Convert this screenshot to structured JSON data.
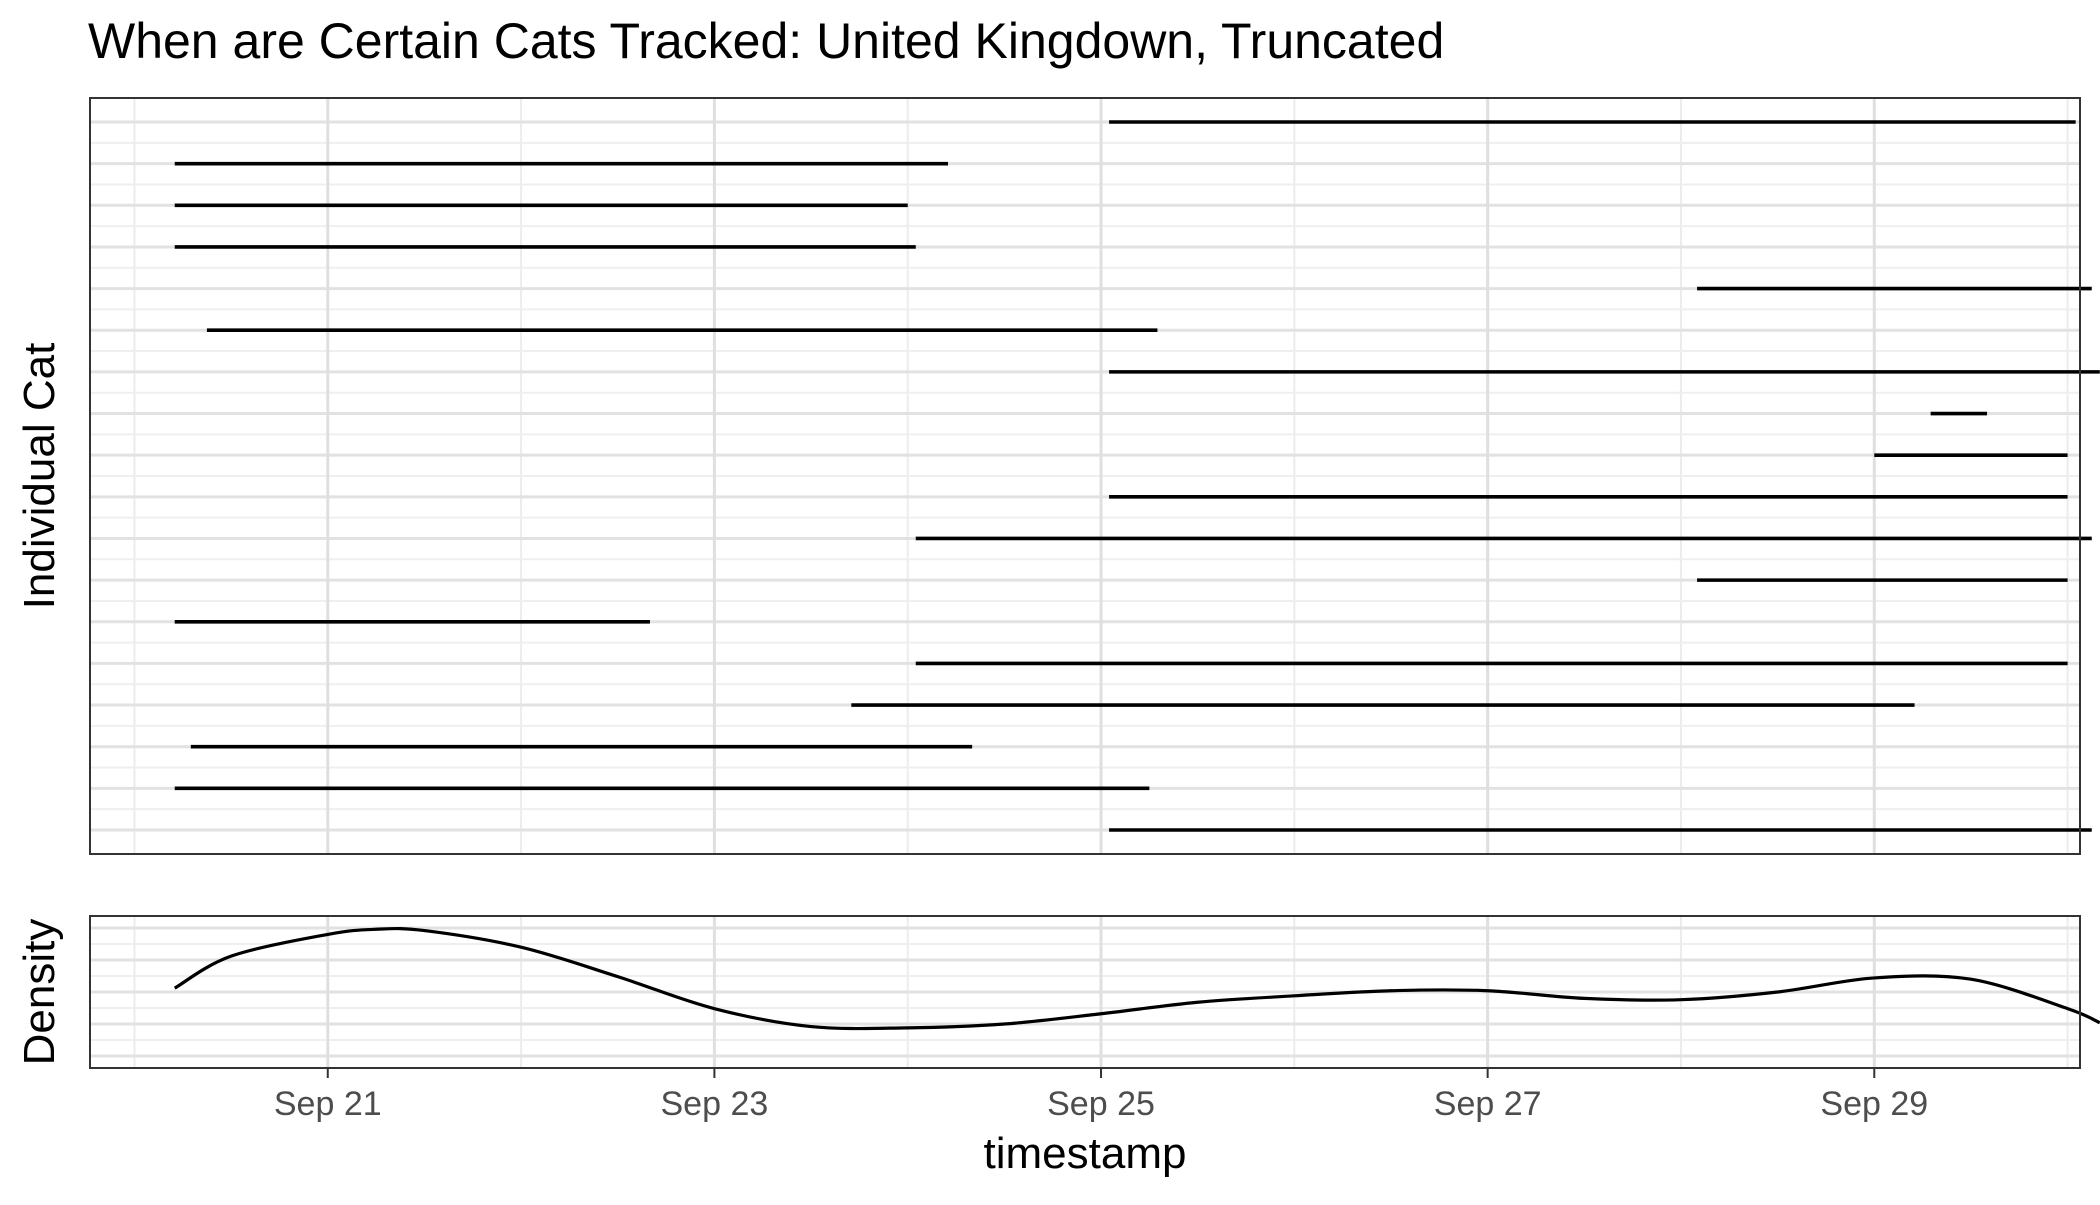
{
  "chart_data": [
    {
      "type": "line",
      "title": "When are Certain Cats Tracked: United Kingdown, Truncated",
      "xlabel": "",
      "ylabel": "Individual Cat",
      "x_axis_type": "date",
      "xlim": [
        "2020-09-19",
        "2020-09-30"
      ],
      "grid": true,
      "legend": "none",
      "segments": [
        {
          "start": "2020-09-25 01:00",
          "end": "2020-09-30 01:00"
        },
        {
          "start": "2020-09-20 05:00",
          "end": "2020-09-24 05:00"
        },
        {
          "start": "2020-09-20 05:00",
          "end": "2020-09-24 00:00"
        },
        {
          "start": "2020-09-20 05:00",
          "end": "2020-09-24 01:00"
        },
        {
          "start": "2020-09-28 02:00",
          "end": "2020-09-30 03:00"
        },
        {
          "start": "2020-09-20 09:00",
          "end": "2020-09-25 07:00"
        },
        {
          "start": "2020-09-25 01:00",
          "end": "2020-09-30 04:00"
        },
        {
          "start": "2020-09-29 07:00",
          "end": "2020-09-29 14:00"
        },
        {
          "start": "2020-09-29 00:00",
          "end": "2020-09-30 00:00"
        },
        {
          "start": "2020-09-25 01:00",
          "end": "2020-09-30 00:00"
        },
        {
          "start": "2020-09-24 01:00",
          "end": "2020-09-30 03:00"
        },
        {
          "start": "2020-09-28 02:00",
          "end": "2020-09-30 00:00"
        },
        {
          "start": "2020-09-20 05:00",
          "end": "2020-09-22 16:00"
        },
        {
          "start": "2020-09-24 01:00",
          "end": "2020-09-30 00:00"
        },
        {
          "start": "2020-09-23 17:00",
          "end": "2020-09-29 05:00"
        },
        {
          "start": "2020-09-20 07:00",
          "end": "2020-09-24 08:00"
        },
        {
          "start": "2020-09-20 05:00",
          "end": "2020-09-25 06:00"
        },
        {
          "start": "2020-09-25 01:00",
          "end": "2020-09-30 03:00"
        }
      ]
    },
    {
      "type": "area",
      "title": "",
      "xlabel": "timestamp",
      "ylabel": "Density",
      "x_axis_type": "date",
      "xlim": [
        "2020-09-19",
        "2020-09-30"
      ],
      "x_ticks": [
        "Sep 21",
        "Sep 23",
        "Sep 25",
        "Sep 27",
        "Sep 29"
      ],
      "x_tick_dates": [
        "2020-09-21",
        "2020-09-23",
        "2020-09-25",
        "2020-09-27",
        "2020-09-29"
      ],
      "grid": true,
      "legend": "none",
      "density_curve": {
        "x": [
          "2020-09-20 05:00",
          "2020-09-20 12:00",
          "2020-09-21 00:00",
          "2020-09-21 06:00",
          "2020-09-21 12:00",
          "2020-09-22 00:00",
          "2020-09-22 12:00",
          "2020-09-23 00:00",
          "2020-09-23 12:00",
          "2020-09-24 00:00",
          "2020-09-24 12:00",
          "2020-09-25 00:00",
          "2020-09-25 12:00",
          "2020-09-26 00:00",
          "2020-09-26 12:00",
          "2020-09-27 00:00",
          "2020-09-27 12:00",
          "2020-09-28 00:00",
          "2020-09-28 12:00",
          "2020-09-29 00:00",
          "2020-09-29 12:00",
          "2020-09-30 00:00",
          "2020-09-30 04:00"
        ],
        "y": [
          0.53,
          0.78,
          0.95,
          0.99,
          0.98,
          0.85,
          0.62,
          0.37,
          0.23,
          0.22,
          0.25,
          0.33,
          0.42,
          0.47,
          0.51,
          0.51,
          0.45,
          0.44,
          0.5,
          0.61,
          0.6,
          0.37,
          0.26
        ]
      }
    }
  ]
}
